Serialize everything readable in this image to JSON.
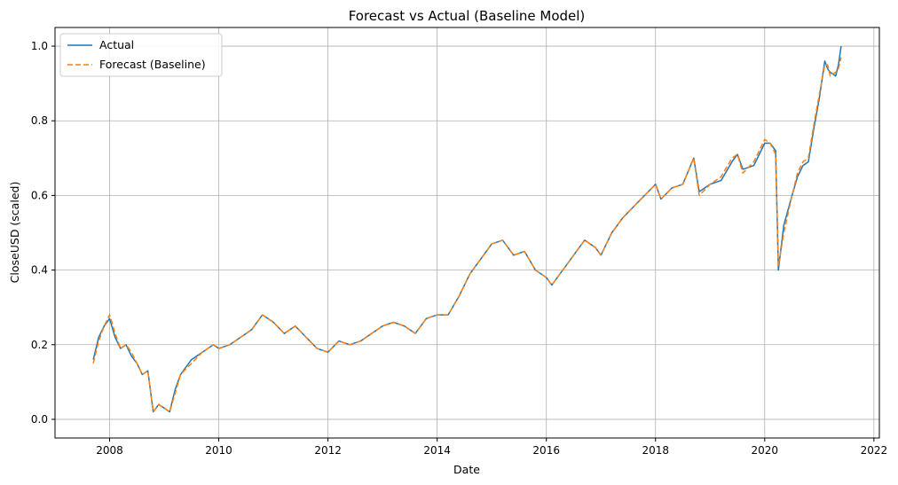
{
  "chart_data": {
    "type": "line",
    "title": "Forecast vs Actual (Baseline Model)",
    "xlabel": "Date",
    "ylabel": "CloseUSD (scaled)",
    "xlim": [
      2007.0,
      2022.1
    ],
    "ylim": [
      -0.05,
      1.05
    ],
    "x_ticks": [
      2008,
      2010,
      2012,
      2014,
      2016,
      2018,
      2020,
      2022
    ],
    "y_ticks": [
      0.0,
      0.2,
      0.4,
      0.6,
      0.8,
      1.0
    ],
    "x_tick_labels": [
      "2008",
      "2010",
      "2012",
      "2014",
      "2016",
      "2018",
      "2020",
      "2022"
    ],
    "y_tick_labels": [
      "0.0",
      "0.2",
      "0.4",
      "0.6",
      "0.8",
      "1.0"
    ],
    "grid": true,
    "legend_position": "top-left",
    "series": [
      {
        "name": "Actual",
        "color": "#1f77b4",
        "style": "solid",
        "x": [
          2007.7,
          2007.8,
          2007.9,
          2008.0,
          2008.1,
          2008.2,
          2008.3,
          2008.4,
          2008.5,
          2008.6,
          2008.7,
          2008.8,
          2008.9,
          2009.0,
          2009.1,
          2009.2,
          2009.3,
          2009.5,
          2009.7,
          2009.9,
          2010.0,
          2010.2,
          2010.4,
          2010.6,
          2010.8,
          2010.9,
          2011.0,
          2011.2,
          2011.4,
          2011.6,
          2011.8,
          2012.0,
          2012.2,
          2012.4,
          2012.6,
          2012.8,
          2013.0,
          2013.2,
          2013.4,
          2013.6,
          2013.8,
          2014.0,
          2014.2,
          2014.4,
          2014.6,
          2014.8,
          2015.0,
          2015.2,
          2015.4,
          2015.6,
          2015.8,
          2016.0,
          2016.1,
          2016.3,
          2016.5,
          2016.7,
          2016.9,
          2017.0,
          2017.2,
          2017.4,
          2017.6,
          2017.8,
          2018.0,
          2018.1,
          2018.3,
          2018.5,
          2018.7,
          2018.8,
          2019.0,
          2019.2,
          2019.4,
          2019.5,
          2019.6,
          2019.8,
          2020.0,
          2020.1,
          2020.2,
          2020.25,
          2020.35,
          2020.5,
          2020.6,
          2020.7,
          2020.8,
          2020.9,
          2021.0,
          2021.1,
          2021.15,
          2021.2,
          2021.3,
          2021.35,
          2021.4
        ],
        "values": [
          0.16,
          0.22,
          0.25,
          0.27,
          0.22,
          0.19,
          0.2,
          0.17,
          0.15,
          0.12,
          0.13,
          0.02,
          0.04,
          0.03,
          0.02,
          0.08,
          0.12,
          0.16,
          0.18,
          0.2,
          0.19,
          0.2,
          0.22,
          0.24,
          0.28,
          0.27,
          0.26,
          0.23,
          0.25,
          0.22,
          0.19,
          0.18,
          0.21,
          0.2,
          0.21,
          0.23,
          0.25,
          0.26,
          0.25,
          0.23,
          0.27,
          0.28,
          0.28,
          0.33,
          0.39,
          0.43,
          0.47,
          0.48,
          0.44,
          0.45,
          0.4,
          0.38,
          0.36,
          0.4,
          0.44,
          0.48,
          0.46,
          0.44,
          0.5,
          0.54,
          0.57,
          0.6,
          0.63,
          0.59,
          0.62,
          0.63,
          0.7,
          0.61,
          0.63,
          0.64,
          0.69,
          0.71,
          0.67,
          0.68,
          0.74,
          0.74,
          0.72,
          0.4,
          0.52,
          0.6,
          0.65,
          0.68,
          0.69,
          0.78,
          0.86,
          0.96,
          0.94,
          0.93,
          0.92,
          0.95,
          1.0
        ]
      },
      {
        "name": "Forecast (Baseline)",
        "color": "#ff7f0e",
        "style": "dashed",
        "x": [
          2007.7,
          2007.8,
          2007.9,
          2008.0,
          2008.1,
          2008.2,
          2008.3,
          2008.4,
          2008.5,
          2008.6,
          2008.7,
          2008.8,
          2008.9,
          2009.0,
          2009.1,
          2009.2,
          2009.3,
          2009.5,
          2009.7,
          2009.9,
          2010.0,
          2010.2,
          2010.4,
          2010.6,
          2010.8,
          2010.9,
          2011.0,
          2011.2,
          2011.4,
          2011.6,
          2011.8,
          2012.0,
          2012.2,
          2012.4,
          2012.6,
          2012.8,
          2013.0,
          2013.2,
          2013.4,
          2013.6,
          2013.8,
          2014.0,
          2014.2,
          2014.4,
          2014.6,
          2014.8,
          2015.0,
          2015.2,
          2015.4,
          2015.6,
          2015.8,
          2016.0,
          2016.1,
          2016.3,
          2016.5,
          2016.7,
          2016.9,
          2017.0,
          2017.2,
          2017.4,
          2017.6,
          2017.8,
          2018.0,
          2018.1,
          2018.3,
          2018.5,
          2018.7,
          2018.8,
          2019.0,
          2019.2,
          2019.4,
          2019.5,
          2019.6,
          2019.8,
          2020.0,
          2020.1,
          2020.2,
          2020.25,
          2020.35,
          2020.5,
          2020.6,
          2020.7,
          2020.8,
          2020.9,
          2021.0,
          2021.1,
          2021.15,
          2021.2,
          2021.3,
          2021.35,
          2021.4
        ],
        "values": [
          0.15,
          0.21,
          0.25,
          0.28,
          0.23,
          0.19,
          0.2,
          0.18,
          0.15,
          0.12,
          0.13,
          0.02,
          0.04,
          0.03,
          0.02,
          0.07,
          0.12,
          0.15,
          0.18,
          0.2,
          0.19,
          0.2,
          0.22,
          0.24,
          0.28,
          0.27,
          0.26,
          0.23,
          0.25,
          0.22,
          0.19,
          0.18,
          0.21,
          0.2,
          0.21,
          0.23,
          0.25,
          0.26,
          0.25,
          0.23,
          0.27,
          0.28,
          0.28,
          0.33,
          0.39,
          0.43,
          0.47,
          0.48,
          0.44,
          0.45,
          0.4,
          0.38,
          0.36,
          0.4,
          0.44,
          0.48,
          0.46,
          0.44,
          0.5,
          0.54,
          0.57,
          0.6,
          0.63,
          0.59,
          0.62,
          0.63,
          0.7,
          0.6,
          0.63,
          0.65,
          0.7,
          0.71,
          0.66,
          0.69,
          0.75,
          0.74,
          0.71,
          0.41,
          0.5,
          0.6,
          0.66,
          0.69,
          0.7,
          0.79,
          0.87,
          0.95,
          0.95,
          0.92,
          0.93,
          0.94,
          0.97
        ]
      }
    ]
  }
}
